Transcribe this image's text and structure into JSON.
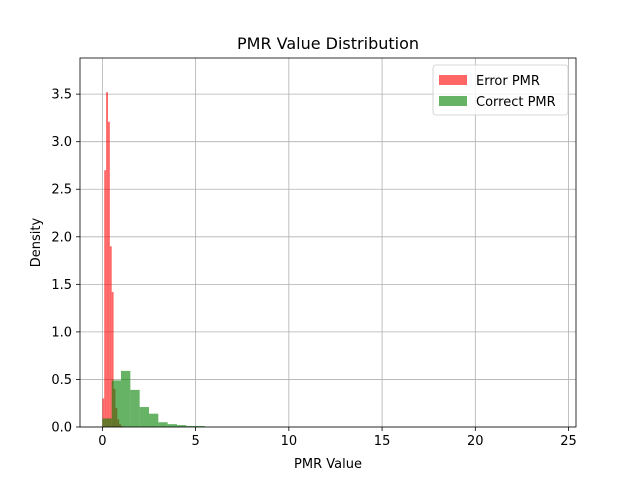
{
  "chart_data": {
    "type": "histogram",
    "title": "PMR Value Distribution",
    "xlabel": "PMR Value",
    "ylabel": "Density",
    "xlim": [
      -1.2,
      25.4
    ],
    "ylim": [
      0,
      3.88
    ],
    "xticks": [
      0,
      5,
      10,
      15,
      20,
      25
    ],
    "yticks": [
      0.0,
      0.5,
      1.0,
      1.5,
      2.0,
      2.5,
      3.0,
      3.5
    ],
    "grid": true,
    "legend_position": "top-right",
    "series": [
      {
        "name": "Error PMR",
        "color": "#ff0000",
        "alpha": 0.6,
        "bins": [
          {
            "x0": 0.0,
            "x1": 0.1,
            "density": 0.3
          },
          {
            "x0": 0.1,
            "x1": 0.2,
            "density": 2.7
          },
          {
            "x0": 0.2,
            "x1": 0.3,
            "density": 3.52
          },
          {
            "x0": 0.3,
            "x1": 0.4,
            "density": 3.21
          },
          {
            "x0": 0.4,
            "x1": 0.5,
            "density": 1.9
          },
          {
            "x0": 0.5,
            "x1": 0.6,
            "density": 1.42
          },
          {
            "x0": 0.6,
            "x1": 0.7,
            "density": 0.4
          },
          {
            "x0": 0.7,
            "x1": 0.8,
            "density": 0.2
          },
          {
            "x0": 0.8,
            "x1": 0.9,
            "density": 0.08
          },
          {
            "x0": 0.9,
            "x1": 1.0,
            "density": 0.03
          },
          {
            "x0": 1.0,
            "x1": 1.1,
            "density": 0.01
          }
        ]
      },
      {
        "name": "Correct PMR",
        "color": "#008000",
        "alpha": 0.6,
        "bins": [
          {
            "x0": 0.0,
            "x1": 0.5,
            "density": 0.09
          },
          {
            "x0": 0.5,
            "x1": 1.0,
            "density": 0.49
          },
          {
            "x0": 1.0,
            "x1": 1.5,
            "density": 0.59
          },
          {
            "x0": 1.5,
            "x1": 2.0,
            "density": 0.39
          },
          {
            "x0": 2.0,
            "x1": 2.5,
            "density": 0.21
          },
          {
            "x0": 2.5,
            "x1": 3.0,
            "density": 0.14
          },
          {
            "x0": 3.0,
            "x1": 3.5,
            "density": 0.05
          },
          {
            "x0": 3.5,
            "x1": 4.0,
            "density": 0.03
          },
          {
            "x0": 4.0,
            "x1": 4.5,
            "density": 0.02
          },
          {
            "x0": 4.5,
            "x1": 5.0,
            "density": 0.01
          },
          {
            "x0": 5.0,
            "x1": 5.5,
            "density": 0.01
          }
        ]
      }
    ]
  }
}
